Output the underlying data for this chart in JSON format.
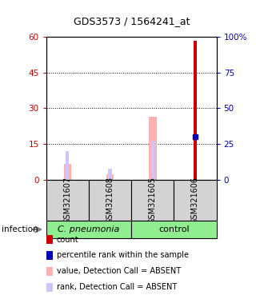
{
  "title": "GDS3573 / 1564241_at",
  "samples": [
    "GSM321607",
    "GSM321608",
    "GSM321605",
    "GSM321606"
  ],
  "group_labels": [
    "C. pneumonia",
    "control"
  ],
  "ylim_left": [
    0,
    60
  ],
  "ylim_right": [
    0,
    100
  ],
  "yticks_left": [
    0,
    15,
    30,
    45,
    60
  ],
  "yticks_right": [
    0,
    25,
    50,
    75,
    100
  ],
  "ytick_labels_right": [
    "0",
    "25",
    "50",
    "75",
    "100%"
  ],
  "count_values": [
    0,
    0,
    0,
    58.5
  ],
  "percentile_values": [
    0,
    0,
    0,
    30
  ],
  "value_absent": [
    6.5,
    2.2,
    26.5,
    0
  ],
  "rank_absent": [
    12.0,
    4.5,
    16.5,
    0
  ],
  "count_color": "#cc0000",
  "percentile_color": "#0000bb",
  "value_absent_color": "#ffb0b0",
  "rank_absent_color": "#c8c8ff",
  "group_color": "#90ee90",
  "sample_bg_color": "#d3d3d3",
  "left_label_color": "#cc0000",
  "right_label_color": "#0000bb",
  "legend_items": [
    "count",
    "percentile rank within the sample",
    "value, Detection Call = ABSENT",
    "rank, Detection Call = ABSENT"
  ],
  "legend_colors": [
    "#cc0000",
    "#0000bb",
    "#ffb0b0",
    "#c8c8ff"
  ]
}
